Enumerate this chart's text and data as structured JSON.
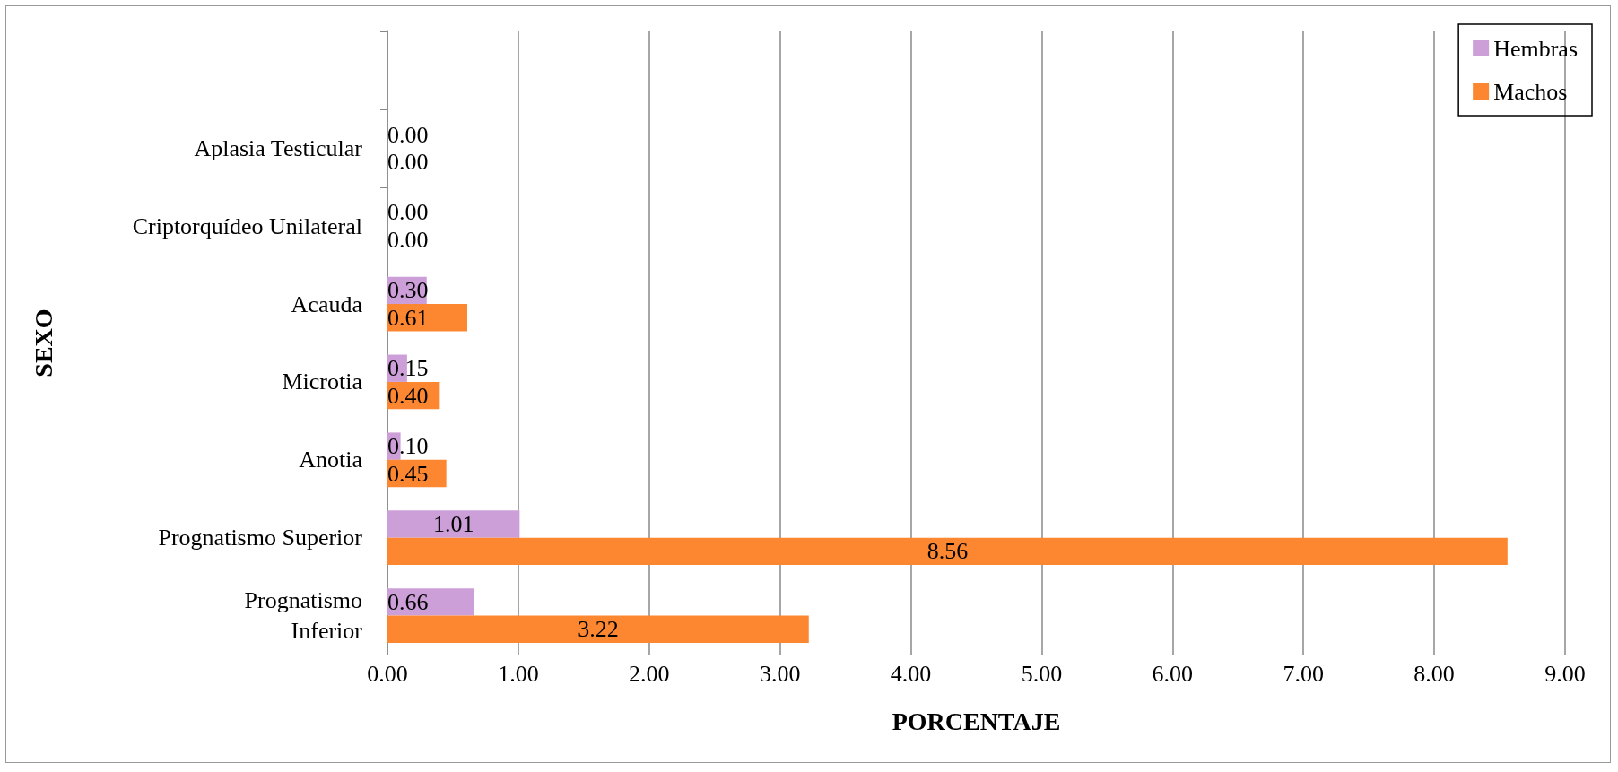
{
  "chart_data": {
    "type": "bar",
    "orientation": "horizontal",
    "xlabel": "PORCENTAJE",
    "ylabel": "SEXO",
    "categories": [
      null,
      "Aplasia Testicular",
      "Criptorquídeo Unilateral",
      "Acauda",
      "Microtia",
      "Anotia",
      "Prognatismo Superior",
      "Prognatismo\nInferior"
    ],
    "series": [
      {
        "name": "Hembras",
        "color": "#cc9fd8",
        "values": [
          null,
          0,
          0,
          0.3,
          0.15,
          0.1,
          1.01,
          0.66
        ],
        "value_labels": [
          null,
          "0.00",
          "0.00",
          "0.30",
          "0.15",
          "0.10",
          "1.01",
          "0.66"
        ]
      },
      {
        "name": "Machos",
        "color": "#fd8731",
        "values": [
          null,
          0,
          0,
          0.61,
          0.4,
          0.45,
          8.56,
          3.22
        ],
        "value_labels": [
          null,
          "0.00",
          "0.00",
          "0.61",
          "0.40",
          "0.45",
          "8.56",
          "3.22"
        ]
      }
    ],
    "xlim": [
      0,
      9
    ],
    "xticks": [
      {
        "value": 0,
        "label": "0.00"
      },
      {
        "value": 1,
        "label": "1.00"
      },
      {
        "value": 2,
        "label": "2.00"
      },
      {
        "value": 3,
        "label": "3.00"
      },
      {
        "value": 4,
        "label": "4.00"
      },
      {
        "value": 5,
        "label": "5.00"
      },
      {
        "value": 6,
        "label": "6.00"
      },
      {
        "value": 7,
        "label": "7.00"
      },
      {
        "value": 8,
        "label": "8.00"
      },
      {
        "value": 9,
        "label": "9.00"
      }
    ],
    "grid": "x",
    "legend": "top right"
  }
}
